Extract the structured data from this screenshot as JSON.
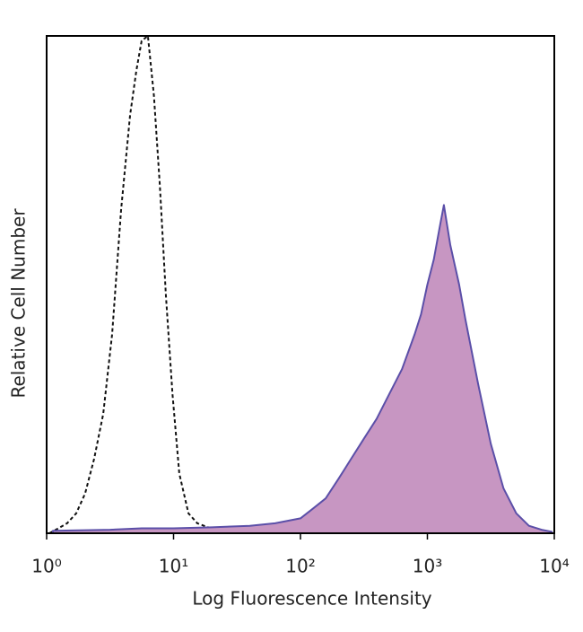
{
  "chart_data": {
    "type": "histogram-overlay",
    "x_label": "Log Fluorescence Intensity",
    "y_label": "Relative Cell Number",
    "xscale": "log",
    "xlim": [
      1,
      10000
    ],
    "ylim": [
      0,
      100
    ],
    "xticks": [
      {
        "value": 1,
        "label": "10⁰"
      },
      {
        "value": 10,
        "label": "10¹"
      },
      {
        "value": 100,
        "label": "10²"
      },
      {
        "value": 1000,
        "label": "10³"
      },
      {
        "value": 10000,
        "label": "10⁴"
      }
    ],
    "series": [
      {
        "color": "#111111",
        "dashed": true,
        "filled": false,
        "x": [
          1.05,
          1.24,
          1.45,
          1.71,
          2.01,
          2.37,
          2.79,
          3.28,
          3.86,
          4.54,
          5.09,
          5.6,
          6.28,
          7.0,
          7.8,
          8.7,
          9.8,
          11.1,
          13.1,
          15.4,
          19.7,
          29.5,
          56.6,
          128
        ],
        "values": [
          0,
          1,
          2,
          4,
          8,
          15,
          24,
          40,
          65,
          84,
          93,
          99,
          100,
          88,
          70,
          48,
          28,
          12,
          4,
          2,
          1,
          0.5,
          0.3,
          0
        ]
      },
      {
        "color": "#5b4fa8",
        "fill": "#c796c2",
        "dashed": false,
        "filled": true,
        "x": [
          1.12,
          3.16,
          5.62,
          10,
          20,
          39.8,
          63.1,
          100,
          126,
          158,
          200,
          251,
          316,
          398,
          501,
          631,
          794,
          891,
          1000,
          1122,
          1259,
          1349,
          1514,
          1778,
          1995,
          2512,
          3162,
          3981,
          5012,
          6310,
          7943,
          9550
        ],
        "values": [
          0.5,
          0.7,
          1,
          1,
          1.2,
          1.5,
          2,
          3,
          5,
          7,
          11,
          15,
          19,
          23,
          28,
          33,
          40,
          44,
          50,
          55,
          62,
          66,
          58,
          50,
          43,
          30,
          18,
          9,
          4,
          1.5,
          0.7,
          0.3
        ]
      }
    ]
  }
}
